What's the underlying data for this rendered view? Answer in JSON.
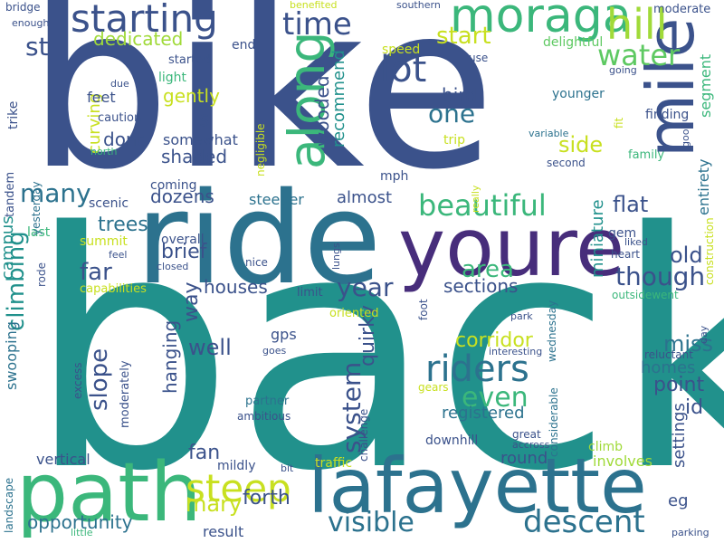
{
  "palette": {
    "background": "#ffffff",
    "navy": "#3b528b",
    "purple": "#472d7b",
    "teal": "#21918c",
    "blue": "#2c728e",
    "green": "#5ec962",
    "emerald": "#3bb77b",
    "yellow": "#c8e020",
    "lime": "#a0da39",
    "dark": "#440154"
  },
  "words": [
    {
      "text": "bike",
      "color": "#3b528b"
    },
    {
      "text": "back",
      "color": "#21918c"
    },
    {
      "text": "ride",
      "color": "#2c728e"
    },
    {
      "text": "youre",
      "color": "#472d7b"
    },
    {
      "text": "path",
      "color": "#3bb77b"
    },
    {
      "text": "lafayette",
      "color": "#2c728e"
    },
    {
      "text": "mile",
      "color": "#3b528b"
    },
    {
      "text": "moraga",
      "color": "#3bb77b"
    },
    {
      "text": "along",
      "color": "#3bb77b"
    },
    {
      "text": "starting",
      "color": "#3b528b"
    },
    {
      "text": "hill",
      "color": "#a0da39"
    },
    {
      "text": "riders",
      "color": "#2c728e"
    },
    {
      "text": "steep",
      "color": "#c8e020"
    },
    {
      "text": "lot",
      "color": "#3b528b"
    },
    {
      "text": "descent",
      "color": "#2c728e"
    },
    {
      "text": "visible",
      "color": "#2c728e"
    },
    {
      "text": "time",
      "color": "#3b528b"
    },
    {
      "text": "beautiful",
      "color": "#3bb77b"
    },
    {
      "text": "water",
      "color": "#5ec962"
    },
    {
      "text": "one",
      "color": "#2c728e"
    },
    {
      "text": "even",
      "color": "#3bb77b"
    },
    {
      "text": "system",
      "color": "#3b528b"
    },
    {
      "text": "many",
      "color": "#2c728e"
    },
    {
      "text": "year",
      "color": "#3b528b"
    },
    {
      "text": "climbing",
      "color": "#21918c"
    },
    {
      "text": "start",
      "color": "#c8e020"
    },
    {
      "text": "st",
      "color": "#3b528b"
    },
    {
      "text": "slope",
      "color": "#3b528b"
    },
    {
      "text": "though",
      "color": "#3b528b"
    },
    {
      "text": "far",
      "color": "#3b528b"
    },
    {
      "text": "area",
      "color": "#3bb77b"
    },
    {
      "text": "dedicated",
      "color": "#a0da39"
    },
    {
      "text": "mary",
      "color": "#c8e020"
    },
    {
      "text": "opportunity",
      "color": "#2c728e"
    },
    {
      "text": "quirky",
      "color": "#3b528b"
    },
    {
      "text": "gently",
      "color": "#c8e020"
    },
    {
      "text": "wooded",
      "color": "#3b528b"
    },
    {
      "text": "recommend",
      "color": "#21918c"
    },
    {
      "text": "side",
      "color": "#c8e020"
    },
    {
      "text": "old",
      "color": "#3b528b"
    },
    {
      "text": "miniature",
      "color": "#21918c"
    },
    {
      "text": "segment",
      "color": "#3bb77b"
    },
    {
      "text": "entirety",
      "color": "#2c728e"
    },
    {
      "text": "curving",
      "color": "#c8e020"
    },
    {
      "text": "dont",
      "color": "#3b528b"
    },
    {
      "text": "shaded",
      "color": "#3b528b"
    },
    {
      "text": "dozens",
      "color": "#3b528b"
    },
    {
      "text": "brief",
      "color": "#3b528b"
    },
    {
      "text": "trees",
      "color": "#2c728e"
    },
    {
      "text": "well",
      "color": "#3b528b"
    },
    {
      "text": "way",
      "color": "#3b528b"
    },
    {
      "text": "hanging",
      "color": "#3b528b"
    },
    {
      "text": "houses",
      "color": "#3b528b"
    },
    {
      "text": "sections",
      "color": "#3b528b"
    },
    {
      "text": "corridor",
      "color": "#c8e020"
    },
    {
      "text": "flat",
      "color": "#3b528b"
    },
    {
      "text": "bird",
      "color": "#3b528b"
    },
    {
      "text": "almost",
      "color": "#3b528b"
    },
    {
      "text": "campus",
      "color": "#21918c"
    },
    {
      "text": "forth",
      "color": "#3b528b"
    },
    {
      "text": "fan",
      "color": "#3b528b"
    },
    {
      "text": "point",
      "color": "#3b528b"
    },
    {
      "text": "homes",
      "color": "#2c728e"
    },
    {
      "text": "miss",
      "color": "#2c728e"
    },
    {
      "text": "id",
      "color": "#3b528b"
    },
    {
      "text": "settings",
      "color": "#3b528b"
    },
    {
      "text": "round",
      "color": "#3b528b"
    },
    {
      "text": "eg",
      "color": "#3b528b"
    },
    {
      "text": "registered",
      "color": "#2c728e"
    },
    {
      "text": "s",
      "color": "#3b528b"
    },
    {
      "text": "feet",
      "color": "#3b528b"
    },
    {
      "text": "somewhat",
      "color": "#3b528b"
    },
    {
      "text": "summit",
      "color": "#c8e020"
    },
    {
      "text": "swooping",
      "color": "#2c728e"
    },
    {
      "text": "steeper",
      "color": "#2c728e"
    },
    {
      "text": "vertical",
      "color": "#3b528b"
    },
    {
      "text": "involves",
      "color": "#a0da39"
    },
    {
      "text": "within",
      "color": "#3b528b"
    },
    {
      "text": "result",
      "color": "#3b528b"
    },
    {
      "text": "mildly",
      "color": "#3b528b"
    },
    {
      "text": "climb",
      "color": "#a0da39"
    },
    {
      "text": "younger",
      "color": "#2c728e"
    },
    {
      "text": "finding",
      "color": "#3b528b"
    },
    {
      "text": "family",
      "color": "#3bb77b"
    },
    {
      "text": "gem",
      "color": "#3b528b"
    },
    {
      "text": "trip",
      "color": "#c8e020"
    },
    {
      "text": "mph",
      "color": "#3b528b"
    },
    {
      "text": "overall",
      "color": "#3b528b"
    },
    {
      "text": "scenic",
      "color": "#3b528b"
    },
    {
      "text": "coming",
      "color": "#3b528b"
    },
    {
      "text": "last",
      "color": "#3bb77b"
    },
    {
      "text": "light",
      "color": "#3bb77b"
    },
    {
      "text": "started",
      "color": "#3b528b"
    },
    {
      "text": "end",
      "color": "#3b528b"
    },
    {
      "text": "caution",
      "color": "#3b528b"
    },
    {
      "text": "delightful",
      "color": "#5ec962"
    },
    {
      "text": "moderate",
      "color": "#3b528b"
    },
    {
      "text": "speed",
      "color": "#c8e020"
    },
    {
      "text": "use",
      "color": "#3b528b"
    },
    {
      "text": "southern",
      "color": "#3b528b"
    },
    {
      "text": "benefited",
      "color": "#c8e020"
    },
    {
      "text": "bridge",
      "color": "#3b528b"
    },
    {
      "text": "enough",
      "color": "#3b528b"
    },
    {
      "text": "trike",
      "color": "#3b528b"
    },
    {
      "text": "tandem",
      "color": "#3b528b"
    },
    {
      "text": "yesterday",
      "color": "#2c728e"
    },
    {
      "text": "due",
      "color": "#3b528b"
    },
    {
      "text": "north",
      "color": "#3bb77b"
    },
    {
      "text": "negligible",
      "color": "#c8e020"
    },
    {
      "text": "going",
      "color": "#3b528b"
    },
    {
      "text": "fit",
      "color": "#c8e020"
    },
    {
      "text": "good",
      "color": "#3b528b"
    },
    {
      "text": "construction",
      "color": "#c8e020"
    },
    {
      "text": "variable",
      "color": "#2c728e"
    },
    {
      "text": "second",
      "color": "#3b528b"
    },
    {
      "text": "really",
      "color": "#c8e020"
    },
    {
      "text": "rode",
      "color": "#3b528b"
    },
    {
      "text": "feel",
      "color": "#3b528b"
    },
    {
      "text": "closed",
      "color": "#3b528b"
    },
    {
      "text": "nice",
      "color": "#3b528b"
    },
    {
      "text": "lungs",
      "color": "#3b528b"
    },
    {
      "text": "liked",
      "color": "#3b528b"
    },
    {
      "text": "heart",
      "color": "#3b528b"
    },
    {
      "text": "outsidewent",
      "color": "#3bb77b"
    },
    {
      "text": "capabilities",
      "color": "#c8e020"
    },
    {
      "text": "limit",
      "color": "#3b528b"
    },
    {
      "text": "foot",
      "color": "#3b528b"
    },
    {
      "text": "wednesday",
      "color": "#2c728e"
    },
    {
      "text": "park",
      "color": "#3b528b"
    },
    {
      "text": "day",
      "color": "#3b528b"
    },
    {
      "text": "reluctant",
      "color": "#3b528b"
    },
    {
      "text": "oriented",
      "color": "#c8e020"
    },
    {
      "text": "gps",
      "color": "#3b528b"
    },
    {
      "text": "goes",
      "color": "#3b528b"
    },
    {
      "text": "interesting",
      "color": "#3b528b"
    },
    {
      "text": "moderately",
      "color": "#3b528b"
    },
    {
      "text": "excess",
      "color": "#3b528b"
    },
    {
      "text": "partner",
      "color": "#2c728e"
    },
    {
      "text": "ambitious",
      "color": "#3b528b"
    },
    {
      "text": "gears",
      "color": "#c8e020"
    },
    {
      "text": "considerable",
      "color": "#2c728e"
    },
    {
      "text": "challenge",
      "color": "#3b528b"
    },
    {
      "text": "great",
      "color": "#3b528b"
    },
    {
      "text": "accross",
      "color": "#3b528b"
    },
    {
      "text": "downhill",
      "color": "#3b528b"
    },
    {
      "text": "traffic",
      "color": "#c8e020"
    },
    {
      "text": "bit",
      "color": "#3b528b"
    },
    {
      "text": "landscape",
      "color": "#2c728e"
    },
    {
      "text": "little",
      "color": "#3bb77b"
    },
    {
      "text": "parking",
      "color": "#3b528b"
    }
  ]
}
